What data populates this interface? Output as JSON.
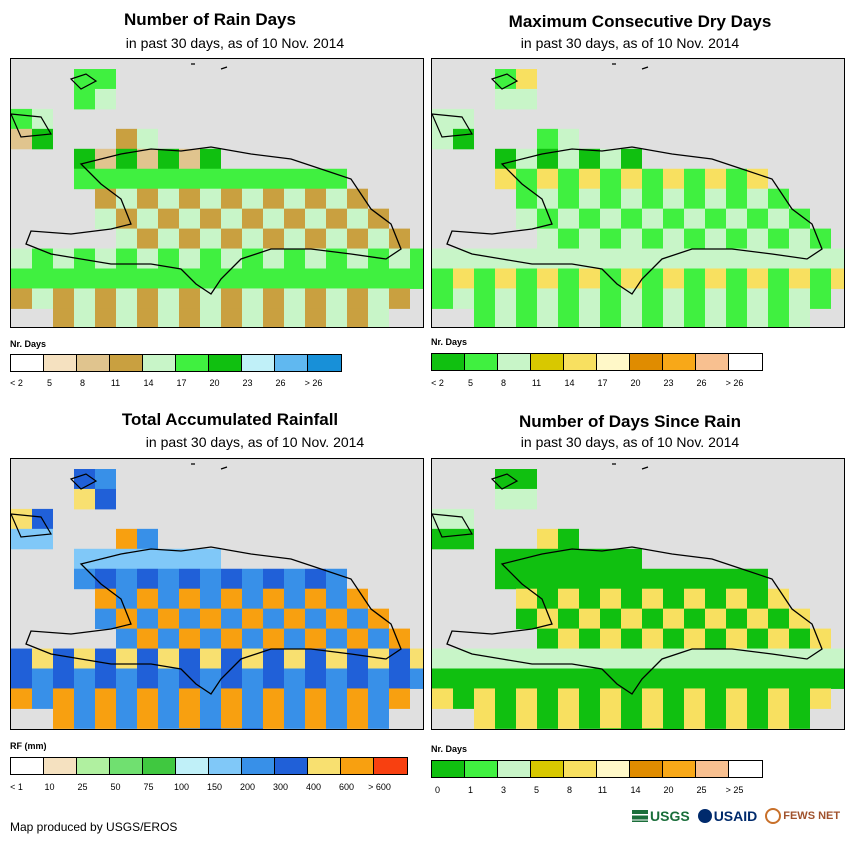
{
  "panels": [
    {
      "id": "rain-days",
      "title": "Number of Rain Days",
      "subtitle": "in past 30 days, as of 10 Nov. 2014",
      "legend_title": "Nr. Days",
      "legend_colors": [
        "#ffffff",
        "#f5e1c0",
        "#e0c48e",
        "#c9a040",
        "#c8f5c8",
        "#40f040",
        "#10c010",
        "#c0f0f8",
        "#60b8f0",
        "#1890d8"
      ],
      "legend_labels": [
        "< 2",
        "5",
        "8",
        "11",
        "14",
        "17",
        "20",
        "23",
        "26",
        "> 26"
      ],
      "dominant": [
        "#c8f5c8",
        "#40f040",
        "#40f040",
        "#e0c48e",
        "#c9a040",
        "#40f040",
        "#c8f5c8",
        "#10c010"
      ]
    },
    {
      "id": "dry-days",
      "title": "Maximum Consecutive Dry Days",
      "subtitle": "in past 30 days, as of 10 Nov. 2014",
      "legend_title": "Nr. Days",
      "legend_colors": [
        "#10c010",
        "#40f040",
        "#c8f5c8",
        "#d8c800",
        "#f8e060",
        "#fff8c8",
        "#e08c00",
        "#f8a818",
        "#f8c090",
        "#ffffff"
      ],
      "legend_labels": [
        "< 2",
        "5",
        "8",
        "11",
        "14",
        "17",
        "20",
        "23",
        "26",
        "> 26"
      ],
      "dominant": [
        "#c8f5c8",
        "#40f040",
        "#c8f5c8",
        "#c8f5c8",
        "#40f040",
        "#f8e060",
        "#c8f5c8",
        "#10c010"
      ]
    },
    {
      "id": "rainfall",
      "title": "Total Accumulated Rainfall",
      "subtitle": "in past 30 days, as of 10 Nov. 2014",
      "legend_title": "RF (mm)",
      "legend_colors": [
        "#ffffff",
        "#f5e1c0",
        "#b0f0a0",
        "#70e070",
        "#40c840",
        "#c0f0f8",
        "#80c8f8",
        "#3890e8",
        "#2060d8",
        "#f8e070",
        "#f8a010",
        "#f84010"
      ],
      "legend_labels": [
        "< 1",
        "10",
        "25",
        "50",
        "75",
        "100",
        "150",
        "200",
        "300",
        "400",
        "600",
        "> 600"
      ],
      "dominant": [
        "#3890e8",
        "#2060d8",
        "#f8e070",
        "#80c8f8",
        "#f8a010",
        "#3890e8",
        "#2060d8",
        "#80c8f8"
      ]
    },
    {
      "id": "days-since-rain",
      "title": "Number of Days Since Rain",
      "subtitle": "in past 30 days, as of 10 Nov. 2014",
      "legend_title": "Nr. Days",
      "legend_colors": [
        "#10c010",
        "#40f040",
        "#c8f5c8",
        "#d8c800",
        "#f8e060",
        "#fff8c8",
        "#e08c00",
        "#f8a818",
        "#f8c090",
        "#ffffff"
      ],
      "legend_labels": [
        "0",
        "1",
        "3",
        "5",
        "8",
        "11",
        "14",
        "20",
        "25",
        "> 25"
      ],
      "dominant": [
        "#10c010",
        "#10c010",
        "#c8f5c8",
        "#10c010",
        "#f8e060",
        "#10c010",
        "#c8f5c8",
        "#10c010"
      ]
    }
  ],
  "footer": "Map produced by USGS/EROS",
  "logos": [
    "USGS",
    "USAID",
    "FEWS NET"
  ],
  "colors": {
    "land_bg": "#e0e0e0",
    "coast": "#000000"
  }
}
